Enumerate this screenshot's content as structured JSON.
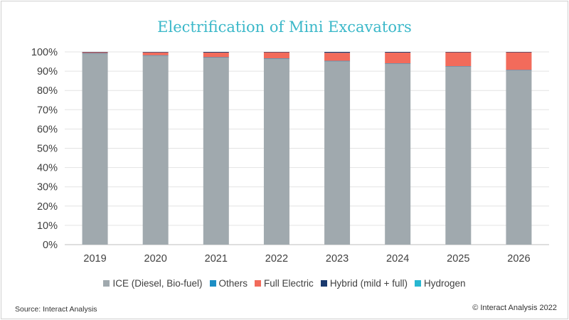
{
  "chart_data": {
    "type": "bar",
    "stacked": true,
    "title": "Electrification of Mini Excavators",
    "categories": [
      "2019",
      "2020",
      "2021",
      "2022",
      "2023",
      "2024",
      "2025",
      "2026"
    ],
    "ylim": [
      0,
      100
    ],
    "yticks": [
      0,
      10,
      20,
      30,
      40,
      50,
      60,
      70,
      80,
      90,
      100
    ],
    "ytick_labels": [
      "0%",
      "10%",
      "20%",
      "30%",
      "40%",
      "50%",
      "60%",
      "70%",
      "80%",
      "90%",
      "100%"
    ],
    "xlabel": "",
    "ylabel": "",
    "grid": true,
    "legend_position": "bottom",
    "series": [
      {
        "name": "ICE (Diesel, Bio-fuel)",
        "color": "#a0a9ae",
        "values": [
          99.3,
          98.2,
          97.2,
          96.6,
          95.3,
          94.0,
          92.5,
          90.6
        ]
      },
      {
        "name": "Others",
        "color": "#1d8ec4",
        "values": [
          0.05,
          0.05,
          0.05,
          0.05,
          0.05,
          0.05,
          0.05,
          0.05
        ]
      },
      {
        "name": "Full Electric",
        "color": "#f26b5b",
        "values": [
          0.45,
          1.5,
          2.4,
          3.2,
          4.2,
          5.6,
          7.3,
          9.3
        ]
      },
      {
        "name": "Hybrid (mild + full)",
        "color": "#1a3a6e",
        "values": [
          0.2,
          0.25,
          0.35,
          0.15,
          0.45,
          0.35,
          0.15,
          0.05
        ]
      },
      {
        "name": "Hydrogen",
        "color": "#27b7d1",
        "values": [
          0,
          0,
          0,
          0,
          0,
          0,
          0,
          0
        ]
      }
    ]
  },
  "footer": {
    "source": "Source: Interact Analysis",
    "copyright": "© Interact Analysis 2022"
  }
}
